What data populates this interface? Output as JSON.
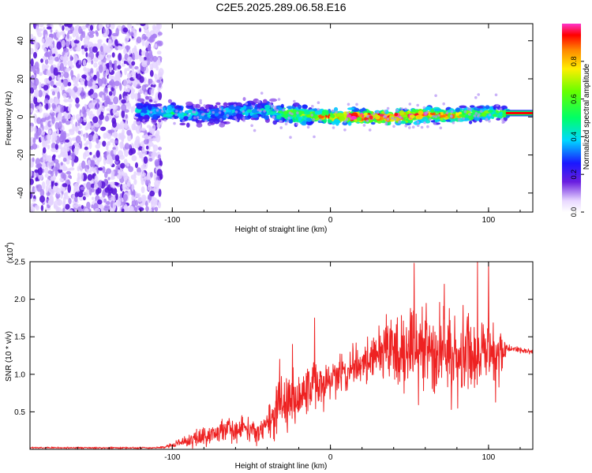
{
  "title": "C2E5.2025.289.06.58.E16",
  "chart_data": [
    {
      "type": "heatmap",
      "xlabel": "Height of straight line (km)",
      "ylabel": "Frequency (Hz)",
      "xlim": [
        -190,
        128
      ],
      "ylim": [
        -50,
        49
      ],
      "xticks": [
        -100,
        0,
        100
      ],
      "xtick_labels": [
        "-100",
        "0",
        "100"
      ],
      "yticks": [
        -40,
        -20,
        0,
        20,
        40
      ],
      "ytick_labels": [
        "-40",
        "-20",
        "0",
        "20",
        "40"
      ],
      "noise_region_km": [
        -190,
        -107
      ],
      "signal_band_hz": [
        -8,
        10
      ],
      "ridge": {
        "x_km": [
          -120,
          -100,
          -80,
          -60,
          -40,
          -20,
          0,
          20,
          40,
          60,
          80,
          100,
          110
        ],
        "freq_hz": [
          3,
          2,
          1,
          3,
          3,
          1,
          0,
          0,
          0,
          1,
          1,
          2,
          2
        ],
        "amplitude": [
          0.35,
          0.4,
          0.35,
          0.35,
          0.4,
          0.55,
          0.75,
          0.9,
          0.9,
          0.8,
          0.7,
          0.55,
          0.5
        ]
      },
      "right_band_hz": 2,
      "colorbar": {
        "label": "Normalized spectral amplitude",
        "range": [
          0,
          1
        ],
        "ticks": [
          0.0,
          0.2,
          0.4,
          0.6,
          0.8
        ],
        "tick_labels": [
          "0.0",
          "0.2",
          "0.4",
          "0.6",
          "0.8"
        ]
      }
    },
    {
      "type": "line",
      "xlabel": "Height of straight line (km)",
      "ylabel": "SNR (10 * v/v)",
      "multiplier": "(x10",
      "multiplier_exp": "4",
      "multiplier_close": ")",
      "xlim": [
        -190,
        128
      ],
      "ylim": [
        0,
        2.5
      ],
      "xticks": [
        -100,
        0,
        100
      ],
      "xtick_labels": [
        "-100",
        "0",
        "100"
      ],
      "yticks": [
        0.5,
        1.0,
        1.5,
        2.0,
        2.5
      ],
      "ytick_labels": [
        "0.5",
        "1.0",
        "1.5",
        "2.0",
        "2.5"
      ],
      "color": "#ee2222",
      "series_name": "SNR",
      "envelope": {
        "x_km": [
          -190,
          -110,
          -100,
          -80,
          -60,
          -52,
          -45,
          -35,
          -25,
          -15,
          -5,
          0,
          10,
          20,
          30,
          40,
          50,
          60,
          70,
          80,
          90,
          100,
          108,
          111,
          128
        ],
        "mean": [
          0.02,
          0.02,
          0.05,
          0.18,
          0.28,
          0.3,
          0.18,
          0.55,
          0.65,
          0.7,
          0.9,
          0.95,
          1.05,
          1.15,
          1.25,
          1.35,
          1.3,
          1.3,
          1.25,
          1.25,
          1.3,
          1.3,
          1.3,
          1.35,
          1.3
        ],
        "spread": [
          0.01,
          0.01,
          0.03,
          0.12,
          0.15,
          0.18,
          0.1,
          0.35,
          0.35,
          0.35,
          0.25,
          0.25,
          0.25,
          0.3,
          0.35,
          0.45,
          0.55,
          0.55,
          0.55,
          0.55,
          0.55,
          0.5,
          0.45,
          0.05,
          0.03
        ]
      },
      "spikes": [
        {
          "x": -56,
          "y": 0.45
        },
        {
          "x": -32,
          "y": 1.2
        },
        {
          "x": -24,
          "y": 1.4
        },
        {
          "x": -10,
          "y": 1.75
        },
        {
          "x": 53,
          "y": 2.48
        },
        {
          "x": 93,
          "y": 2.5
        },
        {
          "x": 100,
          "y": 2.5
        },
        {
          "x": 72,
          "y": 2.2
        }
      ],
      "tail_level": 1.32
    }
  ]
}
